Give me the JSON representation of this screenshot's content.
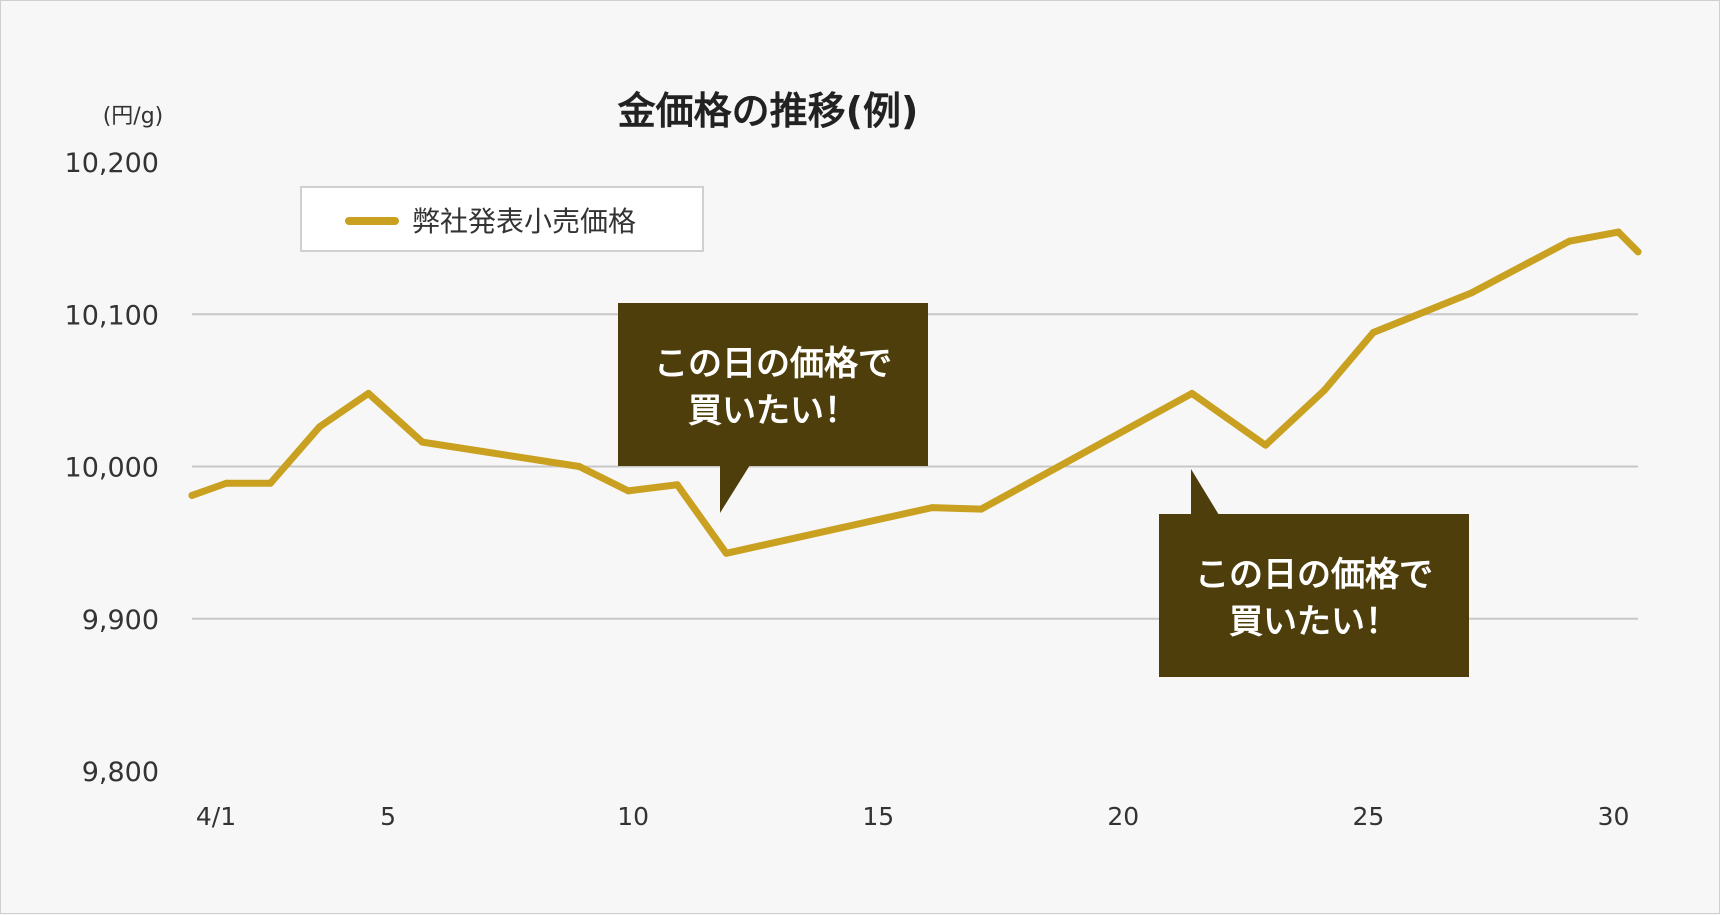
{
  "chart_data": {
    "type": "line",
    "title": "金価格の推移(例)",
    "ylabel": "(円/g)",
    "xlabel": "",
    "ylim": [
      9800,
      10200
    ],
    "yticks": [
      9800,
      9900,
      10000,
      10100,
      10200
    ],
    "ytick_labels": [
      "9,800",
      "9,900",
      "10,000",
      "10,100",
      "10,200"
    ],
    "xlim": [
      1,
      30.5
    ],
    "xticks": [
      1,
      5,
      10,
      15,
      20,
      25,
      30
    ],
    "xtick_labels": [
      "4/1",
      "5",
      "10",
      "15",
      "20",
      "25",
      "30"
    ],
    "grid": "horizontal at 9,900, 10,000, 10,100",
    "legend_position": "top-left",
    "series": [
      {
        "name": "弊社発表小売価格",
        "color": "#c9a020",
        "x": [
          1,
          1.7,
          2.6,
          3.6,
          4.6,
          5.7,
          8.9,
          9.9,
          10.9,
          11.9,
          16.1,
          17.1,
          21.4,
          22.9,
          24.1,
          25.1,
          27.1,
          29.1,
          30.1,
          30.5
        ],
        "y": [
          9981,
          9989,
          9989,
          10026,
          10048,
          10016,
          10000,
          9984,
          9988,
          9943,
          9973,
          9972,
          10048,
          10014,
          10050,
          10088,
          10114,
          10148,
          10154,
          10141
        ]
      }
    ],
    "annotations": [
      {
        "text_lines": [
          "この日の価格で",
          "買いたい！"
        ],
        "x": 11.9,
        "y": 9943,
        "placement": "above"
      },
      {
        "text_lines": [
          "この日の価格で",
          "買いたい！"
        ],
        "x": 22.9,
        "y": 10014,
        "placement": "below"
      }
    ]
  },
  "colors": {
    "background": "#f7f7f7",
    "grid": "#c8c8c8",
    "line": "#c9a020",
    "callout": "#4e3e0c"
  }
}
